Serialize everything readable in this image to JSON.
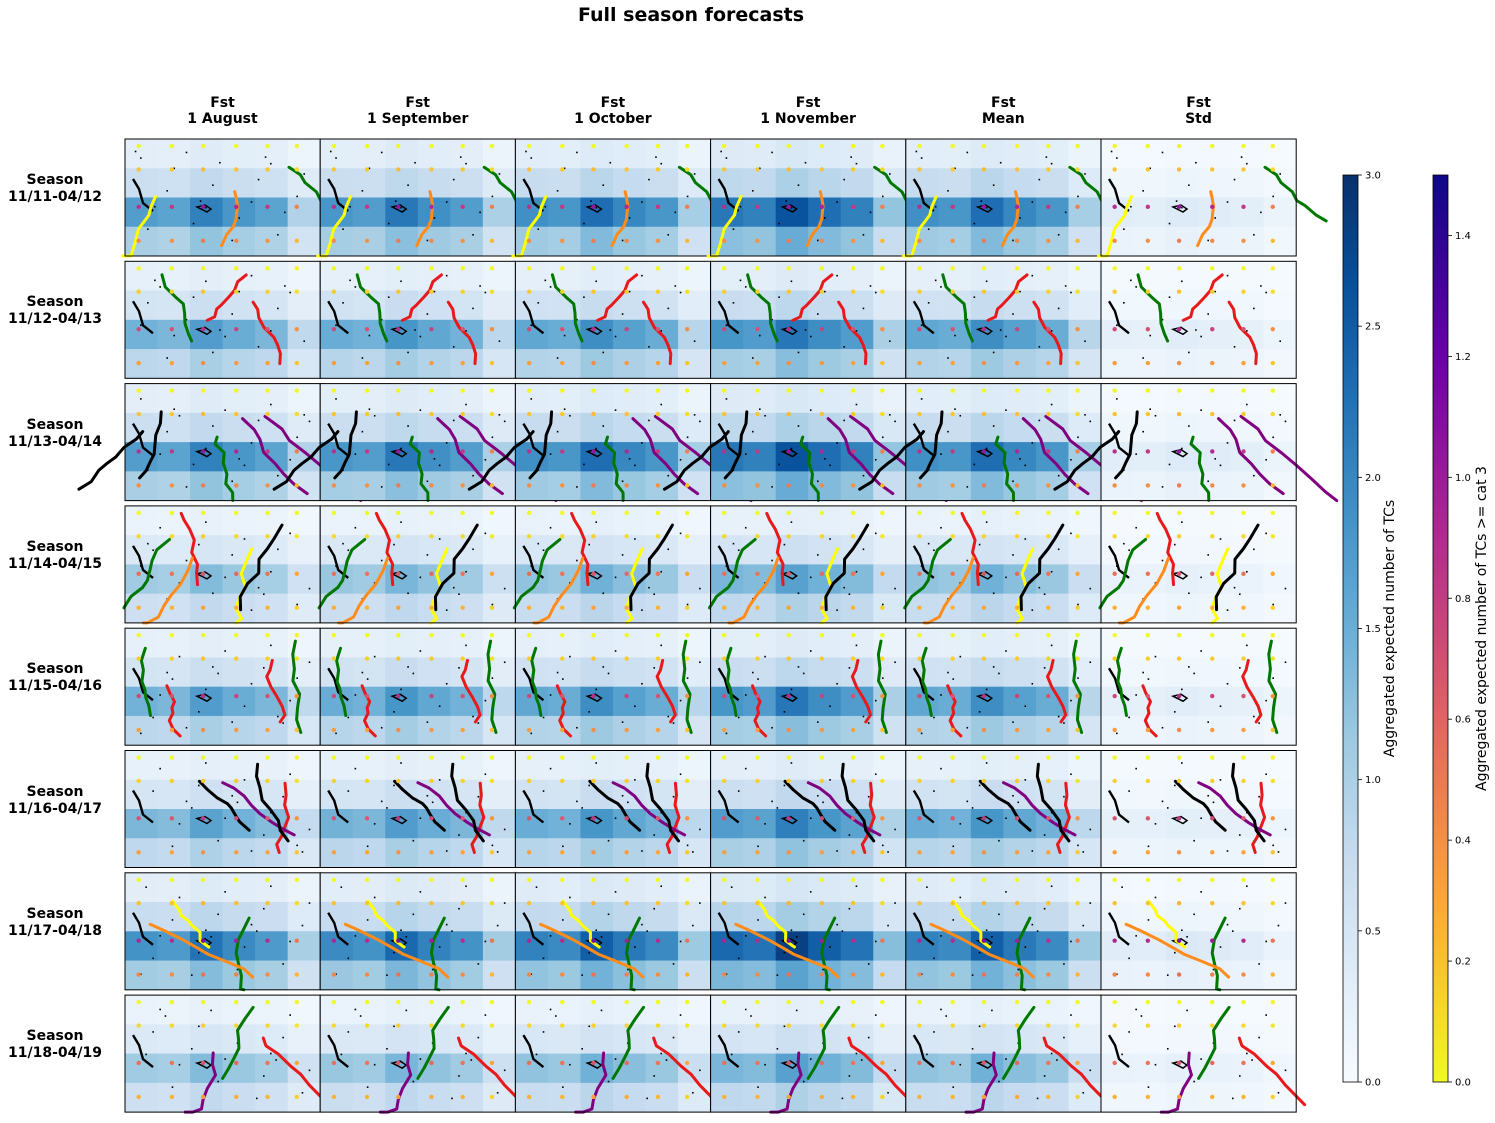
{
  "title": "Full season forecasts",
  "columns": [
    {
      "label": "Fst\n1 August"
    },
    {
      "label": "Fst\n1 September"
    },
    {
      "label": "Fst\n1 October"
    },
    {
      "label": "Fst\n1 November"
    },
    {
      "label": "Fst\nMean"
    },
    {
      "label": "Fst\nStd"
    }
  ],
  "rows": [
    {
      "label": "Season\n11/11-04/12"
    },
    {
      "label": "Season\n11/12-04/13"
    },
    {
      "label": "Season\n11/13-04/14"
    },
    {
      "label": "Season\n11/14-04/15"
    },
    {
      "label": "Season\n11/15-04/16"
    },
    {
      "label": "Season\n11/16-04/17"
    },
    {
      "label": "Season\n11/17-04/18"
    },
    {
      "label": "Season\n11/18-04/19"
    }
  ],
  "colorbars": [
    {
      "label": "Aggregated expected number of TCs",
      "min": 0,
      "max": 3.0,
      "ticks": [
        "0.0",
        "0.5",
        "1.0",
        "1.5",
        "2.0",
        "2.5",
        "3.0"
      ],
      "colors": [
        "#f7fbff",
        "#deebf7",
        "#c6dbef",
        "#9ecae1",
        "#6baed6",
        "#4292c6",
        "#2171b5",
        "#08519c",
        "#08306b"
      ]
    },
    {
      "label": "Aggregated expected number of TCs >= cat 3",
      "min": 0,
      "max": 1.5,
      "ticks": [
        "0.0",
        "0.2",
        "0.4",
        "0.6",
        "0.8",
        "1.0",
        "1.2",
        "1.4"
      ],
      "colors": [
        "#f0f921",
        "#fca636",
        "#e16462",
        "#b12a90",
        "#6a00a8",
        "#0d0887"
      ]
    }
  ],
  "chart_data": {
    "type": "heatmap",
    "title": "Full season forecasts",
    "panel_grid": {
      "rows": 8,
      "cols": 6
    },
    "cells_per_panel": {
      "rows": 4,
      "cols": 6
    },
    "row_means": [
      1.25,
      1.05,
      1.25,
      0.8,
      1.05,
      1.0,
      1.35,
      0.8
    ],
    "column_factor": [
      0.95,
      1.0,
      1.05,
      1.2,
      1.05,
      0.18
    ],
    "track_colors": [
      "#ffff00",
      "#ff8c1a",
      "#e8191b",
      "#800080",
      "#000000",
      "#007800"
    ]
  }
}
